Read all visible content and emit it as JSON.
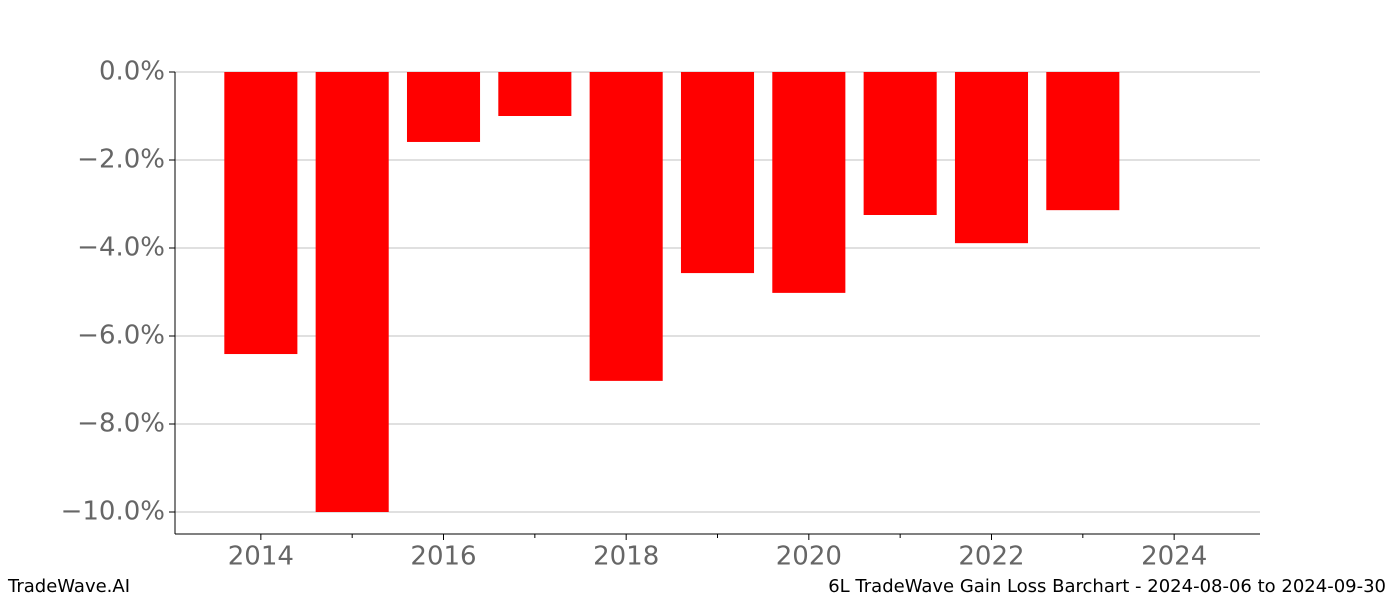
{
  "chart_data": {
    "type": "bar",
    "title": "6L TradeWave Gain Loss Barchart - 2024-08-06 to 2024-09-30",
    "watermark": "TradeWave.AI",
    "x": [
      2014,
      2015,
      2016,
      2017,
      2018,
      2019,
      2020,
      2021,
      2022,
      2023
    ],
    "values": [
      -6.41,
      -10.0,
      -1.59,
      -1.0,
      -7.02,
      -4.57,
      -5.02,
      -3.25,
      -3.89,
      -3.14
    ],
    "color": "#ff0000",
    "xlim": [
      2013.06,
      2024.94
    ],
    "xticks": [
      2014,
      2016,
      2018,
      2020,
      2022,
      2024
    ],
    "xminorticks": [
      2015,
      2017,
      2019,
      2021,
      2023
    ],
    "ylim": [
      -10.5,
      0
    ],
    "yticks": [
      {
        "value": 0,
        "label": "0.0%"
      },
      {
        "value": -2,
        "label": "−2.0%"
      },
      {
        "value": -4,
        "label": "−4.0%"
      },
      {
        "value": -6,
        "label": "−6.0%"
      },
      {
        "value": -8,
        "label": "−8.0%"
      },
      {
        "value": -10,
        "label": "−10.0%"
      }
    ],
    "grid": true
  }
}
